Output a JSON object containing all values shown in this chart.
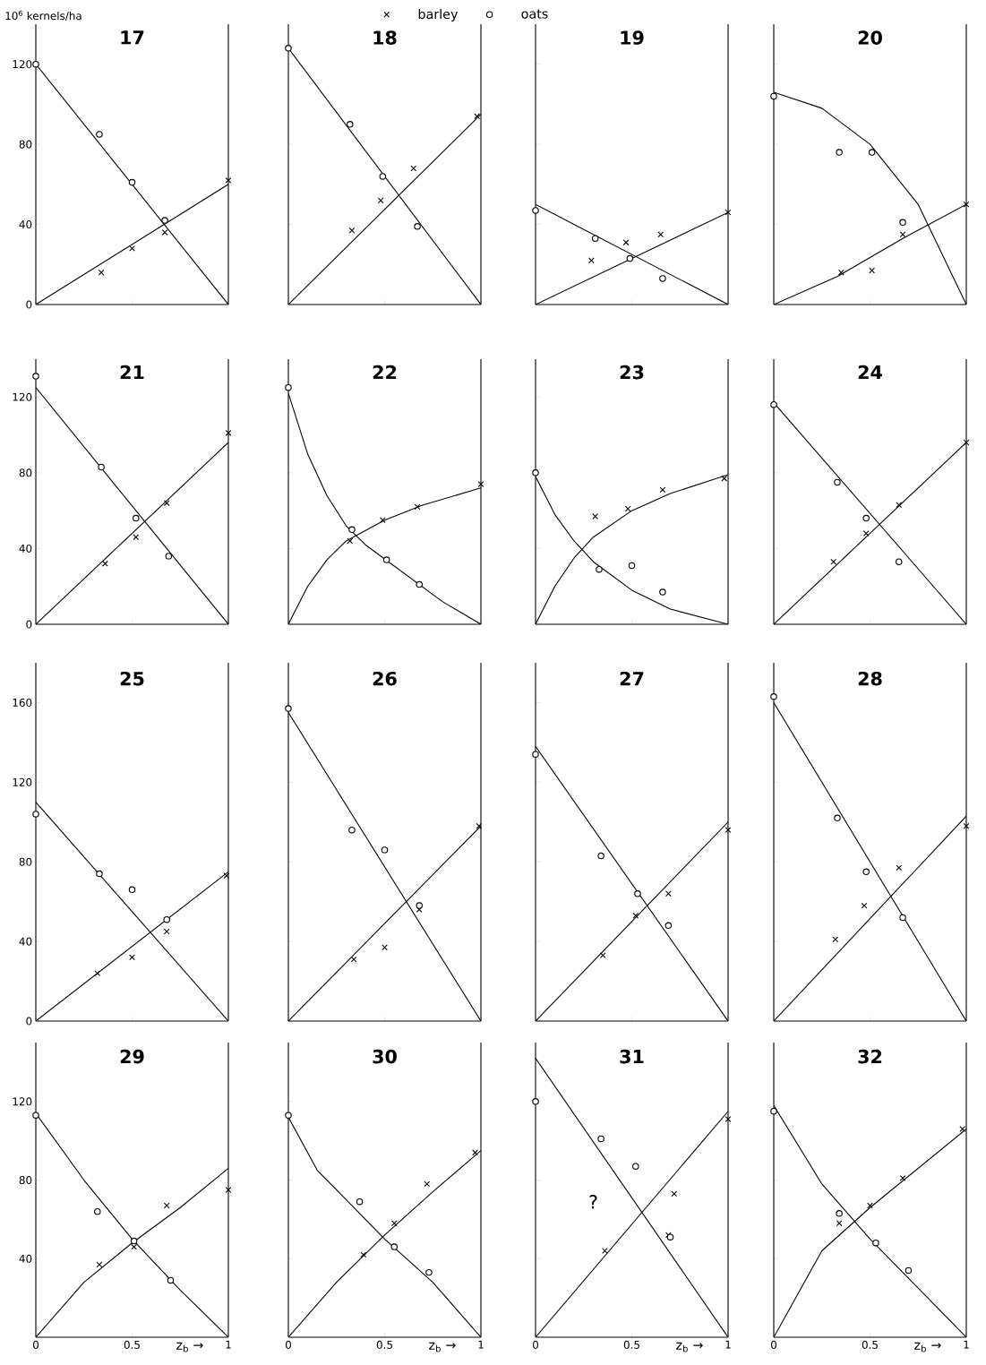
{
  "chart_data": [
    {
      "type": "scatter",
      "title": "17",
      "ylabel": "10$^{6}$ kernels/ha",
      "legend": "top",
      "tick_labels": "y",
      "xlim": [
        0,
        1
      ],
      "xticks": [
        0,
        0.5,
        1
      ],
      "ylim": [
        0,
        140
      ],
      "yticks": [
        0,
        40,
        80,
        120
      ],
      "series": [
        {
          "type": "line",
          "color": "#000000",
          "marker": "none",
          "x": [
            0,
            1
          ],
          "values": [
            0,
            60
          ]
        },
        {
          "type": "line",
          "color": "#000000",
          "marker": "none",
          "x": [
            0,
            1
          ],
          "values": [
            120,
            0
          ]
        },
        {
          "name": "barley",
          "color": "#000000",
          "marker": "cross",
          "x": [
            0.34,
            0.5,
            0.67,
            1
          ],
          "values": [
            16,
            28,
            36,
            62
          ]
        },
        {
          "name": "oats",
          "color": "#000000",
          "marker": "circle",
          "x": [
            0,
            0.33,
            0.5,
            0.67
          ],
          "values": [
            120,
            85,
            61,
            42
          ]
        }
      ]
    },
    {
      "type": "scatter",
      "title": "18",
      "tick_labels": false,
      "xlim": [
        0,
        1
      ],
      "xticks": [
        0,
        0.5,
        1
      ],
      "ylim": [
        0,
        140
      ],
      "yticks": [
        0,
        40,
        80,
        120
      ],
      "series": [
        {
          "type": "line",
          "color": "#000000",
          "marker": "none",
          "x": [
            0,
            1
          ],
          "values": [
            0,
            95
          ]
        },
        {
          "type": "line",
          "color": "#000000",
          "marker": "none",
          "x": [
            0,
            1
          ],
          "values": [
            128,
            0
          ]
        },
        {
          "color": "#000000",
          "marker": "cross",
          "x": [
            0.33,
            0.48,
            0.65,
            0.98
          ],
          "values": [
            37,
            52,
            68,
            94
          ]
        },
        {
          "color": "#000000",
          "marker": "circle",
          "x": [
            0,
            0.32,
            0.49,
            0.67
          ],
          "values": [
            128,
            90,
            64,
            39
          ]
        }
      ]
    },
    {
      "type": "scatter",
      "title": "19",
      "tick_labels": false,
      "xlim": [
        0,
        1
      ],
      "xticks": [
        0,
        0.5,
        1
      ],
      "ylim": [
        0,
        140
      ],
      "yticks": [
        0,
        40,
        80,
        120
      ],
      "series": [
        {
          "type": "line",
          "color": "#000000",
          "marker": "none",
          "x": [
            0,
            1
          ],
          "values": [
            0,
            46
          ]
        },
        {
          "type": "line",
          "color": "#000000",
          "marker": "none",
          "x": [
            0,
            1
          ],
          "values": [
            50,
            0
          ]
        },
        {
          "color": "#000000",
          "marker": "cross",
          "x": [
            0.29,
            0.47,
            0.65,
            1
          ],
          "values": [
            22,
            31,
            35,
            46
          ]
        },
        {
          "color": "#000000",
          "marker": "circle",
          "x": [
            0,
            0.31,
            0.49,
            0.66
          ],
          "values": [
            47,
            33,
            23,
            13
          ]
        }
      ]
    },
    {
      "type": "scatter",
      "title": "20",
      "tick_labels": false,
      "xlim": [
        0,
        1
      ],
      "xticks": [
        0,
        0.5,
        1
      ],
      "ylim": [
        0,
        140
      ],
      "yticks": [
        0,
        40,
        80,
        120
      ],
      "series": [
        {
          "type": "line",
          "color": "#000000",
          "marker": "none",
          "x": [
            0,
            0.33,
            0.67,
            1
          ],
          "values": [
            0,
            14,
            33,
            50
          ]
        },
        {
          "type": "line",
          "color": "#000000",
          "marker": "none",
          "x": [
            0,
            0.25,
            0.5,
            0.75,
            1
          ],
          "values": [
            106,
            98,
            80,
            50,
            0
          ]
        },
        {
          "color": "#000000",
          "marker": "cross",
          "x": [
            0.35,
            0.51,
            0.67,
            1
          ],
          "values": [
            16,
            17,
            35,
            50
          ]
        },
        {
          "color": "#000000",
          "marker": "circle",
          "x": [
            0,
            0.34,
            0.51,
            0.67
          ],
          "values": [
            104,
            76,
            76,
            41
          ]
        }
      ]
    },
    {
      "type": "scatter",
      "title": "21",
      "tick_labels": "y",
      "xlim": [
        0,
        1
      ],
      "xticks": [
        0,
        0.5,
        1
      ],
      "ylim": [
        0,
        140
      ],
      "yticks": [
        0,
        40,
        80,
        120
      ],
      "series": [
        {
          "type": "line",
          "color": "#000000",
          "marker": "none",
          "x": [
            0,
            1
          ],
          "values": [
            0,
            96
          ]
        },
        {
          "type": "line",
          "color": "#000000",
          "marker": "none",
          "x": [
            0,
            1
          ],
          "values": [
            125,
            0
          ]
        },
        {
          "color": "#000000",
          "marker": "cross",
          "x": [
            0.36,
            0.52,
            0.68,
            1
          ],
          "values": [
            32,
            46,
            64,
            101
          ]
        },
        {
          "color": "#000000",
          "marker": "circle",
          "x": [
            0,
            0.34,
            0.52,
            0.69
          ],
          "values": [
            131,
            83,
            56,
            36
          ]
        }
      ]
    },
    {
      "type": "scatter",
      "title": "22",
      "tick_labels": false,
      "xlim": [
        0,
        1
      ],
      "xticks": [
        0,
        0.5,
        1
      ],
      "ylim": [
        0,
        140
      ],
      "yticks": [
        0,
        40,
        80,
        120
      ],
      "series": [
        {
          "type": "line",
          "color": "#000000",
          "marker": "none",
          "x": [
            0,
            0.1,
            0.2,
            0.3,
            0.5,
            0.7,
            1
          ],
          "values": [
            0,
            20,
            34,
            44,
            55,
            63,
            72
          ]
        },
        {
          "type": "line",
          "color": "#000000",
          "marker": "none",
          "x": [
            0,
            0.1,
            0.2,
            0.3,
            0.4,
            0.6,
            0.8,
            1
          ],
          "values": [
            122,
            90,
            68,
            52,
            42,
            27,
            12,
            0
          ]
        },
        {
          "color": "#000000",
          "marker": "cross",
          "x": [
            0.32,
            0.49,
            0.67,
            1
          ],
          "values": [
            44,
            55,
            62,
            74
          ]
        },
        {
          "color": "#000000",
          "marker": "circle",
          "x": [
            0,
            0.33,
            0.51,
            0.68
          ],
          "values": [
            125,
            50,
            34,
            21
          ]
        }
      ]
    },
    {
      "type": "scatter",
      "title": "23",
      "tick_labels": false,
      "xlim": [
        0,
        1
      ],
      "xticks": [
        0,
        0.5,
        1
      ],
      "ylim": [
        0,
        140
      ],
      "yticks": [
        0,
        40,
        80,
        120
      ],
      "series": [
        {
          "type": "line",
          "color": "#000000",
          "marker": "none",
          "x": [
            0,
            0.1,
            0.2,
            0.3,
            0.5,
            0.7,
            1
          ],
          "values": [
            0,
            20,
            35,
            46,
            60,
            69,
            79
          ]
        },
        {
          "type": "line",
          "color": "#000000",
          "marker": "none",
          "x": [
            0,
            0.1,
            0.2,
            0.3,
            0.5,
            0.7,
            1
          ],
          "values": [
            78,
            58,
            44,
            33,
            18,
            8,
            0
          ]
        },
        {
          "color": "#000000",
          "marker": "cross",
          "x": [
            0.31,
            0.48,
            0.66,
            0.98
          ],
          "values": [
            57,
            61,
            71,
            77
          ]
        },
        {
          "color": "#000000",
          "marker": "circle",
          "x": [
            0,
            0.33,
            0.5,
            0.66
          ],
          "values": [
            80,
            29,
            31,
            17
          ]
        }
      ]
    },
    {
      "type": "scatter",
      "title": "24",
      "tick_labels": false,
      "xlim": [
        0,
        1
      ],
      "xticks": [
        0,
        0.5,
        1
      ],
      "ylim": [
        0,
        140
      ],
      "yticks": [
        0,
        40,
        80,
        120
      ],
      "series": [
        {
          "type": "line",
          "color": "#000000",
          "marker": "none",
          "x": [
            0,
            1
          ],
          "values": [
            0,
            96
          ]
        },
        {
          "type": "line",
          "color": "#000000",
          "marker": "none",
          "x": [
            0,
            1
          ],
          "values": [
            117,
            0
          ]
        },
        {
          "color": "#000000",
          "marker": "cross",
          "x": [
            0.31,
            0.48,
            0.65,
            1
          ],
          "values": [
            33,
            48,
            63,
            96
          ]
        },
        {
          "color": "#000000",
          "marker": "circle",
          "x": [
            0,
            0.33,
            0.48,
            0.65
          ],
          "values": [
            116,
            75,
            56,
            33
          ]
        }
      ]
    },
    {
      "type": "scatter",
      "title": "25",
      "tick_labels": "y",
      "xlim": [
        0,
        1
      ],
      "xticks": [
        0,
        0.5,
        1
      ],
      "ylim": [
        0,
        180
      ],
      "yticks": [
        0,
        40,
        80,
        120,
        160
      ],
      "series": [
        {
          "type": "line",
          "color": "#000000",
          "marker": "none",
          "x": [
            0,
            1
          ],
          "values": [
            0,
            75
          ]
        },
        {
          "type": "line",
          "color": "#000000",
          "marker": "none",
          "x": [
            0,
            1
          ],
          "values": [
            110,
            0
          ]
        },
        {
          "color": "#000000",
          "marker": "cross",
          "x": [
            0.32,
            0.5,
            0.68,
            0.99
          ],
          "values": [
            24,
            32,
            45,
            73
          ]
        },
        {
          "color": "#000000",
          "marker": "circle",
          "x": [
            0,
            0.33,
            0.5,
            0.68
          ],
          "values": [
            104,
            74,
            66,
            51
          ]
        }
      ]
    },
    {
      "type": "scatter",
      "title": "26",
      "tick_labels": false,
      "xlim": [
        0,
        1
      ],
      "xticks": [
        0,
        0.5,
        1
      ],
      "ylim": [
        0,
        180
      ],
      "yticks": [
        0,
        40,
        80,
        120,
        160
      ],
      "series": [
        {
          "type": "line",
          "color": "#000000",
          "marker": "none",
          "x": [
            0,
            1
          ],
          "values": [
            0,
            98
          ]
        },
        {
          "type": "line",
          "color": "#000000",
          "marker": "none",
          "x": [
            0,
            1
          ],
          "values": [
            155,
            0
          ]
        },
        {
          "color": "#000000",
          "marker": "cross",
          "x": [
            0.34,
            0.5,
            0.68,
            0.99
          ],
          "values": [
            31,
            37,
            56,
            98
          ]
        },
        {
          "color": "#000000",
          "marker": "circle",
          "x": [
            0,
            0.33,
            0.5,
            0.68
          ],
          "values": [
            157,
            96,
            86,
            58
          ]
        }
      ]
    },
    {
      "type": "scatter",
      "title": "27",
      "tick_labels": false,
      "xlim": [
        0,
        1
      ],
      "xticks": [
        0,
        0.5,
        1
      ],
      "ylim": [
        0,
        180
      ],
      "yticks": [
        0,
        40,
        80,
        120,
        160
      ],
      "series": [
        {
          "type": "line",
          "color": "#000000",
          "marker": "none",
          "x": [
            0,
            1
          ],
          "values": [
            0,
            100
          ]
        },
        {
          "type": "line",
          "color": "#000000",
          "marker": "none",
          "x": [
            0,
            1
          ],
          "values": [
            138,
            0
          ]
        },
        {
          "color": "#000000",
          "marker": "cross",
          "x": [
            0.35,
            0.52,
            0.69,
            1
          ],
          "values": [
            33,
            53,
            64,
            96
          ]
        },
        {
          "color": "#000000",
          "marker": "circle",
          "x": [
            0,
            0.34,
            0.53,
            0.69
          ],
          "values": [
            134,
            83,
            64,
            48
          ]
        }
      ]
    },
    {
      "type": "scatter",
      "title": "28",
      "tick_labels": false,
      "xlim": [
        0,
        1
      ],
      "xticks": [
        0,
        0.5,
        1
      ],
      "ylim": [
        0,
        180
      ],
      "yticks": [
        0,
        40,
        80,
        120,
        160
      ],
      "series": [
        {
          "type": "line",
          "color": "#000000",
          "marker": "none",
          "x": [
            0,
            1
          ],
          "values": [
            0,
            103
          ]
        },
        {
          "type": "line",
          "color": "#000000",
          "marker": "none",
          "x": [
            0,
            1
          ],
          "values": [
            160,
            0
          ]
        },
        {
          "color": "#000000",
          "marker": "cross",
          "x": [
            0.32,
            0.47,
            0.65,
            1
          ],
          "values": [
            41,
            58,
            77,
            98
          ]
        },
        {
          "color": "#000000",
          "marker": "circle",
          "x": [
            0,
            0.33,
            0.48,
            0.67
          ],
          "values": [
            163,
            102,
            75,
            52
          ]
        }
      ]
    },
    {
      "type": "scatter",
      "title": "29",
      "xlabel": "z$_{b}$ →",
      "xlim": [
        0,
        1
      ],
      "xticks": [
        0,
        0.5,
        1
      ],
      "ylim": [
        0,
        150
      ],
      "yticks": [
        40,
        80,
        120
      ],
      "series": [
        {
          "type": "line",
          "color": "#000000",
          "marker": "none",
          "x": [
            0,
            0.25,
            0.5,
            0.75,
            1
          ],
          "values": [
            0,
            28,
            48,
            66,
            86
          ]
        },
        {
          "type": "line",
          "color": "#000000",
          "marker": "none",
          "x": [
            0,
            0.25,
            0.5,
            0.75,
            1
          ],
          "values": [
            114,
            80,
            50,
            24,
            0
          ]
        },
        {
          "color": "#000000",
          "marker": "cross",
          "x": [
            0.33,
            0.51,
            0.68,
            1
          ],
          "values": [
            37,
            46,
            67,
            75
          ]
        },
        {
          "color": "#000000",
          "marker": "circle",
          "x": [
            0,
            0.32,
            0.51,
            0.7
          ],
          "values": [
            113,
            64,
            49,
            29
          ]
        }
      ]
    },
    {
      "type": "scatter",
      "title": "30",
      "xlabel": "z$_{b}$ →",
      "tick_labels": "x",
      "xlim": [
        0,
        1
      ],
      "xticks": [
        0,
        0.5,
        1
      ],
      "ylim": [
        0,
        150
      ],
      "yticks": [
        40,
        80,
        120
      ],
      "series": [
        {
          "type": "line",
          "color": "#000000",
          "marker": "none",
          "x": [
            0,
            0.25,
            0.5,
            0.75,
            1
          ],
          "values": [
            0,
            28,
            52,
            74,
            95
          ]
        },
        {
          "type": "line",
          "color": "#000000",
          "marker": "none",
          "x": [
            0,
            0.15,
            0.3,
            0.5,
            0.75,
            1
          ],
          "values": [
            112,
            85,
            70,
            50,
            28,
            0
          ]
        },
        {
          "color": "#000000",
          "marker": "cross",
          "x": [
            0.39,
            0.55,
            0.72,
            0.97
          ],
          "values": [
            42,
            58,
            78,
            94
          ]
        },
        {
          "color": "#000000",
          "marker": "circle",
          "x": [
            0,
            0.37,
            0.55,
            0.73
          ],
          "values": [
            113,
            69,
            46,
            33
          ]
        }
      ]
    },
    {
      "type": "scatter",
      "title": "31",
      "xlabel": "z$_{b}$ →",
      "tick_labels": "x",
      "xlim": [
        0,
        1
      ],
      "xticks": [
        0,
        0.5,
        1
      ],
      "ylim": [
        0,
        150
      ],
      "yticks": [
        40,
        80,
        120
      ],
      "annotations": [
        "?"
      ],
      "series": [
        {
          "type": "line",
          "color": "#000000",
          "marker": "none",
          "x": [
            0,
            1
          ],
          "values": [
            0,
            115
          ]
        },
        {
          "type": "line",
          "color": "#000000",
          "marker": "none",
          "x": [
            0,
            1
          ],
          "values": [
            142,
            0
          ]
        },
        {
          "color": "#000000",
          "marker": "cross",
          "x": [
            0.36,
            0.69,
            0.72,
            1
          ],
          "values": [
            44,
            52,
            73,
            111
          ]
        },
        {
          "color": "#000000",
          "marker": "circle",
          "x": [
            0,
            0.34,
            0.52,
            0.7
          ],
          "values": [
            120,
            101,
            87,
            51
          ]
        }
      ]
    },
    {
      "type": "scatter",
      "title": "32",
      "xlabel": "z$_{b}$ →",
      "tick_labels": "x",
      "xlim": [
        0,
        1
      ],
      "xticks": [
        0,
        0.5,
        1
      ],
      "ylim": [
        0,
        150
      ],
      "yticks": [
        40,
        80,
        120
      ],
      "series": [
        {
          "type": "line",
          "color": "#000000",
          "marker": "none",
          "x": [
            0,
            0.25,
            0.5,
            0.75,
            1
          ],
          "values": [
            0,
            44,
            66,
            86,
            106
          ]
        },
        {
          "type": "line",
          "color": "#000000",
          "marker": "none",
          "x": [
            0,
            0.25,
            0.5,
            0.75,
            1
          ],
          "values": [
            118,
            78,
            50,
            25,
            0
          ]
        },
        {
          "color": "#000000",
          "marker": "cross",
          "x": [
            0.34,
            0.5,
            0.67,
            0.98
          ],
          "values": [
            58,
            67,
            81,
            106
          ]
        },
        {
          "color": "#000000",
          "marker": "circle",
          "x": [
            0,
            0.34,
            0.53,
            0.7
          ],
          "values": [
            115,
            63,
            48,
            34
          ]
        }
      ]
    }
  ]
}
